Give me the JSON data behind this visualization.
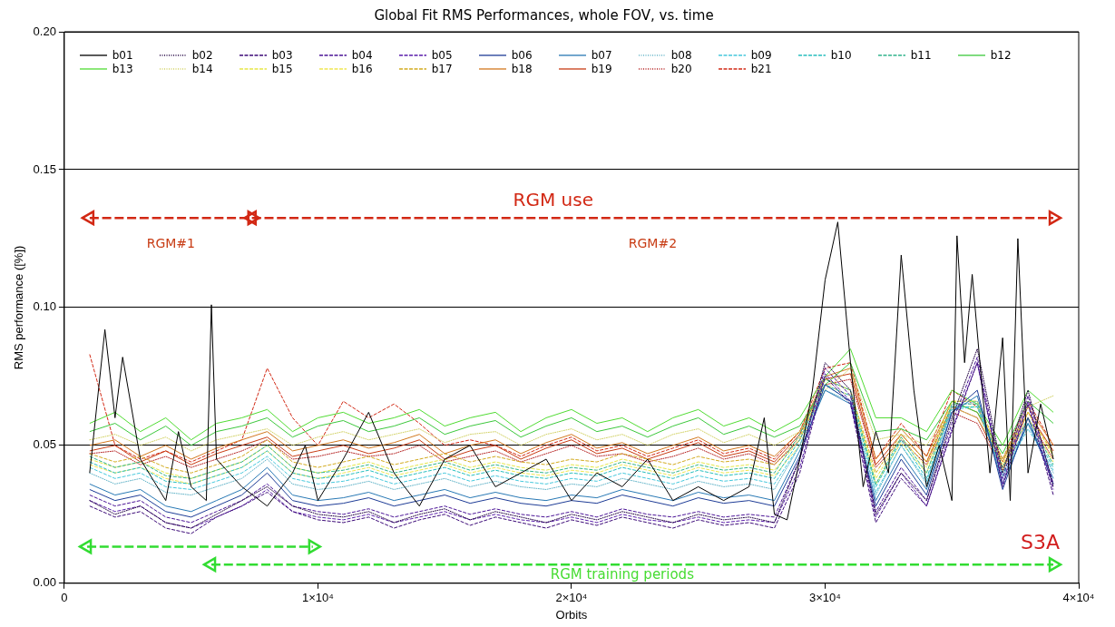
{
  "chart_data": {
    "type": "line",
    "title": "Global Fit RMS Performances, whole FOV, vs. time",
    "xlabel": "Orbits",
    "ylabel": "RMS performance ([%])",
    "x": [
      1000,
      2000,
      3000,
      4000,
      5000,
      6000,
      7000,
      8000,
      9000,
      10000,
      11000,
      12000,
      13000,
      14000,
      15000,
      16000,
      17000,
      18000,
      19000,
      20000,
      21000,
      22000,
      23000,
      24000,
      25000,
      26000,
      27000,
      28000,
      29000,
      30000,
      31000,
      32000,
      33000,
      34000,
      35000,
      36000,
      37000,
      38000,
      39000
    ],
    "xlim": [
      0,
      40000
    ],
    "xticks": [
      0,
      {
        "value": 10000,
        "label": "1×10⁴"
      },
      {
        "value": 20000,
        "label": "2×10⁴"
      },
      {
        "value": 30000,
        "label": "3×10⁴"
      },
      {
        "value": 40000,
        "label": "4×10⁴"
      }
    ],
    "ylim": [
      0,
      0.2
    ],
    "yticks": [
      {
        "value": 0,
        "label": "0.00"
      },
      {
        "value": 0.05,
        "label": "0.05"
      },
      {
        "value": 0.1,
        "label": "0.10"
      },
      {
        "value": 0.15,
        "label": "0.15"
      },
      {
        "value": 0.2,
        "label": "0.20"
      }
    ],
    "grid": "y",
    "legend": "top",
    "marker": "none",
    "annotations": [
      "S3A",
      "RGM use",
      "RGM#1",
      "RGM#2",
      "RGM training periods"
    ],
    "series": [
      {
        "name": "b01",
        "color": "#000000",
        "line_style": "solid",
        "x": [
          1000,
          1600,
          2000,
          2300,
          3000,
          4000,
          4500,
          5000,
          5600,
          5800,
          6000,
          7000,
          8000,
          9000,
          9500,
          10000,
          11000,
          12000,
          13000,
          14000,
          15000,
          16000,
          17000,
          18000,
          19000,
          20000,
          21000,
          22000,
          23000,
          24000,
          25000,
          26000,
          27000,
          27600,
          28000,
          28500,
          29000,
          29500,
          30000,
          30500,
          31000,
          31500,
          32000,
          32500,
          33000,
          33500,
          34000,
          34500,
          35000,
          35200,
          35500,
          35800,
          36200,
          36500,
          37000,
          37300,
          37600,
          38000,
          38500,
          39000
        ],
        "values": [
          0.04,
          0.092,
          0.06,
          0.082,
          0.045,
          0.03,
          0.055,
          0.035,
          0.03,
          0.101,
          0.045,
          0.035,
          0.028,
          0.04,
          0.05,
          0.03,
          0.045,
          0.062,
          0.04,
          0.028,
          0.045,
          0.05,
          0.035,
          0.04,
          0.045,
          0.03,
          0.04,
          0.035,
          0.045,
          0.03,
          0.035,
          0.03,
          0.035,
          0.06,
          0.025,
          0.023,
          0.045,
          0.07,
          0.11,
          0.131,
          0.08,
          0.035,
          0.055,
          0.04,
          0.119,
          0.07,
          0.035,
          0.05,
          0.03,
          0.126,
          0.08,
          0.112,
          0.07,
          0.04,
          0.089,
          0.03,
          0.125,
          0.04,
          0.065,
          0.045
        ]
      },
      {
        "name": "b02",
        "color": "#200040",
        "line_style": "dotted",
        "values": [
          0.03,
          0.025,
          0.028,
          0.022,
          0.02,
          0.025,
          0.03,
          0.035,
          0.028,
          0.025,
          0.024,
          0.026,
          0.022,
          0.025,
          0.027,
          0.023,
          0.026,
          0.024,
          0.022,
          0.025,
          0.023,
          0.026,
          0.024,
          0.022,
          0.025,
          0.023,
          0.024,
          0.022,
          0.045,
          0.08,
          0.07,
          0.025,
          0.04,
          0.03,
          0.06,
          0.085,
          0.04,
          0.07,
          0.035
        ]
      },
      {
        "name": "b03",
        "color": "#3c0a78",
        "line_style": "dashed",
        "values": [
          0.028,
          0.024,
          0.026,
          0.02,
          0.018,
          0.024,
          0.028,
          0.033,
          0.026,
          0.023,
          0.022,
          0.024,
          0.02,
          0.023,
          0.025,
          0.021,
          0.024,
          0.022,
          0.02,
          0.023,
          0.021,
          0.024,
          0.022,
          0.02,
          0.023,
          0.021,
          0.022,
          0.02,
          0.04,
          0.075,
          0.065,
          0.022,
          0.038,
          0.028,
          0.055,
          0.08,
          0.035,
          0.065,
          0.032
        ]
      },
      {
        "name": "b04",
        "color": "#4b1496",
        "line_style": "dashed",
        "values": [
          0.032,
          0.028,
          0.03,
          0.024,
          0.022,
          0.026,
          0.03,
          0.036,
          0.028,
          0.026,
          0.025,
          0.027,
          0.024,
          0.026,
          0.028,
          0.025,
          0.027,
          0.025,
          0.024,
          0.026,
          0.024,
          0.027,
          0.025,
          0.024,
          0.026,
          0.024,
          0.025,
          0.024,
          0.045,
          0.078,
          0.068,
          0.026,
          0.042,
          0.03,
          0.058,
          0.082,
          0.038,
          0.068,
          0.036
        ]
      },
      {
        "name": "b05",
        "color": "#5a1eaa",
        "line_style": "dashed",
        "values": [
          0.03,
          0.026,
          0.028,
          0.022,
          0.02,
          0.024,
          0.028,
          0.034,
          0.026,
          0.024,
          0.023,
          0.025,
          0.022,
          0.024,
          0.026,
          0.023,
          0.025,
          0.023,
          0.022,
          0.024,
          0.022,
          0.025,
          0.023,
          0.022,
          0.024,
          0.022,
          0.023,
          0.022,
          0.042,
          0.076,
          0.066,
          0.024,
          0.04,
          0.028,
          0.056,
          0.08,
          0.036,
          0.066,
          0.034
        ]
      },
      {
        "name": "b06",
        "color": "#1e3c96",
        "line_style": "solid",
        "values": [
          0.034,
          0.03,
          0.032,
          0.026,
          0.024,
          0.028,
          0.032,
          0.04,
          0.03,
          0.028,
          0.029,
          0.031,
          0.028,
          0.03,
          0.032,
          0.029,
          0.031,
          0.029,
          0.028,
          0.03,
          0.029,
          0.032,
          0.03,
          0.028,
          0.031,
          0.029,
          0.03,
          0.028,
          0.046,
          0.072,
          0.066,
          0.028,
          0.045,
          0.032,
          0.062,
          0.07,
          0.034,
          0.06,
          0.036
        ]
      },
      {
        "name": "b07",
        "color": "#2878b4",
        "line_style": "solid",
        "values": [
          0.036,
          0.032,
          0.034,
          0.028,
          0.026,
          0.03,
          0.034,
          0.042,
          0.032,
          0.03,
          0.031,
          0.033,
          0.03,
          0.032,
          0.034,
          0.031,
          0.033,
          0.031,
          0.03,
          0.032,
          0.031,
          0.034,
          0.032,
          0.03,
          0.033,
          0.031,
          0.032,
          0.03,
          0.048,
          0.07,
          0.065,
          0.03,
          0.047,
          0.034,
          0.062,
          0.068,
          0.036,
          0.058,
          0.038
        ]
      },
      {
        "name": "b08",
        "color": "#64b4c8",
        "line_style": "dotted",
        "values": [
          0.04,
          0.036,
          0.038,
          0.033,
          0.032,
          0.035,
          0.038,
          0.045,
          0.036,
          0.034,
          0.035,
          0.037,
          0.034,
          0.036,
          0.038,
          0.035,
          0.037,
          0.035,
          0.034,
          0.036,
          0.035,
          0.038,
          0.036,
          0.034,
          0.037,
          0.035,
          0.036,
          0.034,
          0.05,
          0.07,
          0.066,
          0.032,
          0.05,
          0.036,
          0.064,
          0.066,
          0.038,
          0.058,
          0.04
        ]
      },
      {
        "name": "b09",
        "color": "#46c8dc",
        "line_style": "dashed",
        "values": [
          0.042,
          0.038,
          0.04,
          0.035,
          0.034,
          0.037,
          0.04,
          0.046,
          0.038,
          0.036,
          0.037,
          0.039,
          0.036,
          0.038,
          0.04,
          0.037,
          0.039,
          0.037,
          0.036,
          0.038,
          0.037,
          0.04,
          0.038,
          0.036,
          0.039,
          0.037,
          0.038,
          0.036,
          0.05,
          0.072,
          0.066,
          0.033,
          0.05,
          0.037,
          0.063,
          0.064,
          0.039,
          0.056,
          0.041
        ]
      },
      {
        "name": "b10",
        "color": "#28bebe",
        "line_style": "dashed",
        "values": [
          0.044,
          0.04,
          0.042,
          0.037,
          0.036,
          0.039,
          0.042,
          0.048,
          0.04,
          0.038,
          0.039,
          0.041,
          0.038,
          0.04,
          0.042,
          0.039,
          0.041,
          0.039,
          0.038,
          0.04,
          0.039,
          0.042,
          0.04,
          0.038,
          0.041,
          0.039,
          0.04,
          0.038,
          0.052,
          0.072,
          0.068,
          0.035,
          0.052,
          0.038,
          0.064,
          0.064,
          0.04,
          0.058,
          0.042
        ]
      },
      {
        "name": "b11",
        "color": "#32b48c",
        "line_style": "dashed",
        "values": [
          0.046,
          0.042,
          0.044,
          0.039,
          0.038,
          0.041,
          0.044,
          0.05,
          0.042,
          0.04,
          0.041,
          0.043,
          0.04,
          0.042,
          0.044,
          0.041,
          0.043,
          0.041,
          0.04,
          0.042,
          0.041,
          0.044,
          0.042,
          0.04,
          0.043,
          0.041,
          0.042,
          0.04,
          0.054,
          0.074,
          0.07,
          0.036,
          0.053,
          0.04,
          0.065,
          0.065,
          0.042,
          0.06,
          0.043
        ]
      },
      {
        "name": "b12",
        "color": "#3cc83c",
        "line_style": "solid",
        "values": [
          0.055,
          0.058,
          0.052,
          0.057,
          0.05,
          0.055,
          0.057,
          0.06,
          0.053,
          0.057,
          0.059,
          0.055,
          0.057,
          0.06,
          0.054,
          0.057,
          0.059,
          0.053,
          0.057,
          0.06,
          0.055,
          0.057,
          0.053,
          0.057,
          0.06,
          0.054,
          0.057,
          0.053,
          0.057,
          0.072,
          0.08,
          0.055,
          0.056,
          0.052,
          0.066,
          0.062,
          0.047,
          0.066,
          0.058
        ]
      },
      {
        "name": "b13",
        "color": "#50dc32",
        "line_style": "solid",
        "values": [
          0.058,
          0.062,
          0.055,
          0.06,
          0.052,
          0.058,
          0.06,
          0.063,
          0.055,
          0.06,
          0.062,
          0.058,
          0.06,
          0.063,
          0.057,
          0.06,
          0.062,
          0.055,
          0.06,
          0.063,
          0.058,
          0.06,
          0.055,
          0.06,
          0.063,
          0.057,
          0.06,
          0.055,
          0.06,
          0.075,
          0.085,
          0.06,
          0.06,
          0.055,
          0.07,
          0.065,
          0.05,
          0.07,
          0.062
        ]
      },
      {
        "name": "b14",
        "color": "#d2d264",
        "line_style": "dotted",
        "values": [
          0.052,
          0.054,
          0.05,
          0.053,
          0.048,
          0.052,
          0.054,
          0.056,
          0.05,
          0.053,
          0.055,
          0.052,
          0.054,
          0.056,
          0.051,
          0.054,
          0.055,
          0.05,
          0.054,
          0.056,
          0.052,
          0.054,
          0.05,
          0.054,
          0.056,
          0.051,
          0.054,
          0.05,
          0.055,
          0.07,
          0.078,
          0.052,
          0.054,
          0.05,
          0.064,
          0.06,
          0.045,
          0.064,
          0.068
        ]
      },
      {
        "name": "b15",
        "color": "#e6e646",
        "line_style": "dashed",
        "values": [
          0.045,
          0.042,
          0.044,
          0.04,
          0.038,
          0.041,
          0.044,
          0.05,
          0.042,
          0.04,
          0.042,
          0.044,
          0.041,
          0.043,
          0.045,
          0.042,
          0.044,
          0.042,
          0.041,
          0.043,
          0.042,
          0.045,
          0.043,
          0.041,
          0.044,
          0.042,
          0.043,
          0.041,
          0.052,
          0.074,
          0.07,
          0.038,
          0.053,
          0.042,
          0.066,
          0.066,
          0.043,
          0.062,
          0.046
        ]
      },
      {
        "name": "b16",
        "color": "#f0e650",
        "line_style": "dashed",
        "values": [
          0.043,
          0.04,
          0.042,
          0.038,
          0.036,
          0.039,
          0.042,
          0.048,
          0.04,
          0.038,
          0.04,
          0.042,
          0.039,
          0.041,
          0.043,
          0.04,
          0.042,
          0.04,
          0.039,
          0.041,
          0.04,
          0.043,
          0.041,
          0.039,
          0.042,
          0.04,
          0.041,
          0.039,
          0.05,
          0.072,
          0.068,
          0.036,
          0.051,
          0.04,
          0.064,
          0.064,
          0.041,
          0.06,
          0.044
        ]
      },
      {
        "name": "b17",
        "color": "#d2aa1e",
        "line_style": "dashed",
        "values": [
          0.047,
          0.044,
          0.046,
          0.042,
          0.04,
          0.043,
          0.046,
          0.052,
          0.044,
          0.042,
          0.044,
          0.046,
          0.043,
          0.045,
          0.047,
          0.044,
          0.046,
          0.044,
          0.043,
          0.045,
          0.044,
          0.047,
          0.045,
          0.043,
          0.046,
          0.044,
          0.045,
          0.043,
          0.053,
          0.074,
          0.07,
          0.04,
          0.054,
          0.044,
          0.066,
          0.066,
          0.045,
          0.062,
          0.047
        ]
      },
      {
        "name": "b18",
        "color": "#d2781e",
        "line_style": "solid",
        "values": [
          0.05,
          0.052,
          0.046,
          0.05,
          0.045,
          0.049,
          0.052,
          0.055,
          0.048,
          0.05,
          0.052,
          0.049,
          0.051,
          0.054,
          0.047,
          0.05,
          0.052,
          0.047,
          0.051,
          0.054,
          0.049,
          0.051,
          0.047,
          0.05,
          0.053,
          0.048,
          0.05,
          0.046,
          0.055,
          0.075,
          0.078,
          0.045,
          0.056,
          0.046,
          0.066,
          0.062,
          0.044,
          0.064,
          0.05
        ]
      },
      {
        "name": "b19",
        "color": "#c83c14",
        "line_style": "solid",
        "values": [
          0.048,
          0.05,
          0.044,
          0.048,
          0.043,
          0.047,
          0.05,
          0.053,
          0.046,
          0.048,
          0.05,
          0.047,
          0.049,
          0.052,
          0.045,
          0.048,
          0.05,
          0.045,
          0.049,
          0.052,
          0.047,
          0.049,
          0.045,
          0.048,
          0.051,
          0.046,
          0.048,
          0.044,
          0.054,
          0.074,
          0.076,
          0.043,
          0.054,
          0.044,
          0.064,
          0.06,
          0.042,
          0.062,
          0.048
        ]
      },
      {
        "name": "b20",
        "color": "#b41e1e",
        "line_style": "dotted",
        "values": [
          0.047,
          0.048,
          0.043,
          0.046,
          0.042,
          0.045,
          0.048,
          0.052,
          0.045,
          0.046,
          0.048,
          0.046,
          0.047,
          0.05,
          0.044,
          0.046,
          0.048,
          0.044,
          0.047,
          0.05,
          0.046,
          0.047,
          0.044,
          0.046,
          0.049,
          0.045,
          0.047,
          0.043,
          0.052,
          0.072,
          0.074,
          0.042,
          0.052,
          0.043,
          0.062,
          0.058,
          0.041,
          0.06,
          0.045
        ]
      },
      {
        "name": "b21",
        "color": "#d22814",
        "line_style": "dashed",
        "values": [
          0.083,
          0.05,
          0.045,
          0.048,
          0.044,
          0.048,
          0.052,
          0.078,
          0.06,
          0.05,
          0.066,
          0.06,
          0.065,
          0.058,
          0.05,
          0.052,
          0.05,
          0.046,
          0.05,
          0.053,
          0.048,
          0.05,
          0.046,
          0.049,
          0.052,
          0.047,
          0.049,
          0.045,
          0.055,
          0.078,
          0.08,
          0.045,
          0.058,
          0.046,
          0.07,
          0.064,
          0.045,
          0.066,
          0.05
        ]
      },
      {
        "type": "line",
        "color": "#d22814",
        "line_style": "dashed",
        "marker": "triangle",
        "x": [
          1000,
          7400
        ],
        "values": [
          0.1325,
          0.1325
        ]
      },
      {
        "type": "line",
        "color": "#d22814",
        "line_style": "dashed",
        "marker": "triangle",
        "x": [
          7400,
          39000
        ],
        "values": [
          0.1325,
          0.1325
        ]
      },
      {
        "type": "line",
        "color": "#32dc32",
        "line_style": "dashed",
        "marker": "triangle",
        "x": [
          900,
          9800
        ],
        "values": [
          0.0133,
          0.0133
        ]
      },
      {
        "type": "line",
        "color": "#32dc32",
        "line_style": "dashed",
        "marker": "triangle",
        "x": [
          5800,
          39000
        ],
        "values": [
          0.0068,
          0.0068
        ]
      }
    ]
  }
}
